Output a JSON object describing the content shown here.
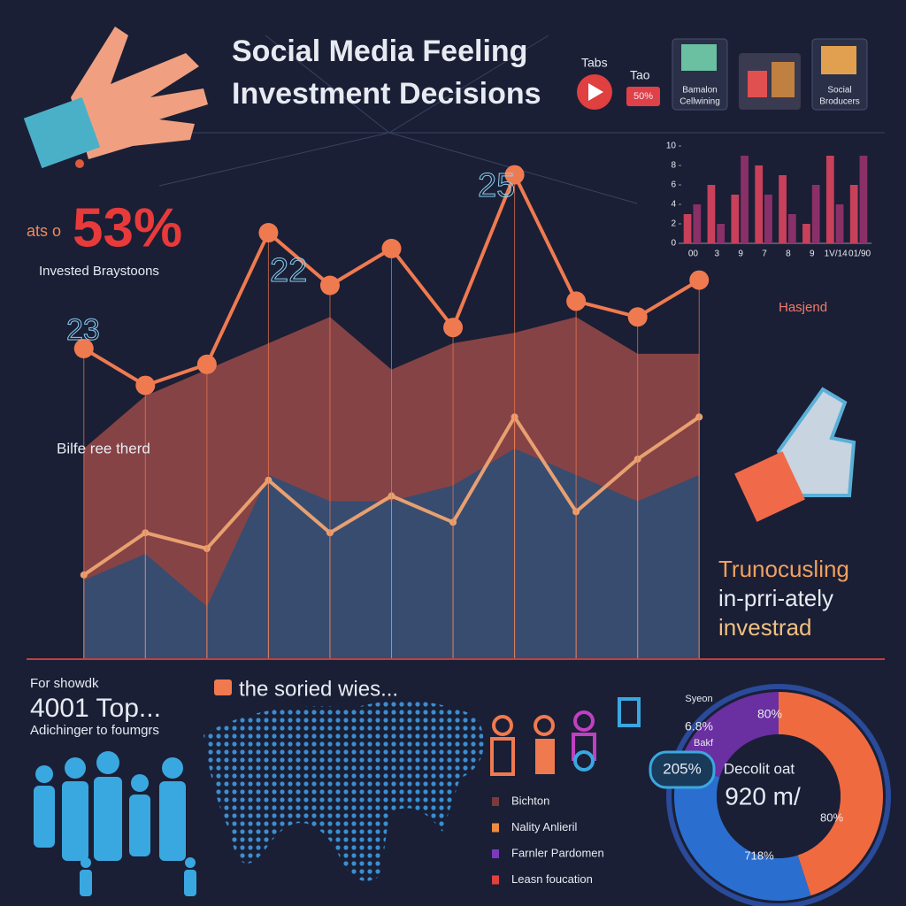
{
  "header": {
    "title_line1": "Social Media Feeling",
    "title_line2": "Investment Decisions"
  },
  "top_icons": {
    "tabs": "Tabs",
    "tao": "Tao",
    "badge": "50%",
    "card1_line1": "Bamalon",
    "card1_line2": "Cellwining",
    "card2_line1": "Social",
    "card2_line2": "Broducers"
  },
  "stat": {
    "prefix": "ats o",
    "value": "53%",
    "caption": "Invested Braystoons"
  },
  "annotations": {
    "trend": "Bilfe ree therd",
    "left_number": "23",
    "mid_number": "22",
    "top_number": "25",
    "right_label": "Hasjend",
    "right_line1": "Trunocusling",
    "right_line2": "in-prri-ately",
    "right_line3": "investrad"
  },
  "bottom_left": {
    "line1": "For showdk",
    "line2": "4001 Top...",
    "line3": "Adichinger to foumgrs"
  },
  "map": {
    "title": "the soried wies..."
  },
  "legend": [
    {
      "label": "Bichton",
      "color": "#7a3a3a"
    },
    {
      "label": "Nality Anlieril",
      "color": "#f08a40"
    },
    {
      "label": "Farnler Pardomen",
      "color": "#7a3ac0"
    },
    {
      "label": "Leasn foucation",
      "color": "#e04040"
    }
  ],
  "donut_labels": {
    "top_small": "Syeon",
    "orange_top": "80%",
    "left_pct": "6.8%",
    "left_small": "Bakf",
    "badge": "205%",
    "center_line1": "Decolit oat",
    "center_line2": "920 m/",
    "orange_bottom": "80%",
    "blue_bottom": "718%"
  },
  "chart_data": [
    {
      "type": "line",
      "categories": [
        null,
        null,
        null,
        null,
        null,
        null,
        null,
        null,
        null,
        null,
        null
      ],
      "ylim": [
        0,
        100
      ],
      "series": [
        {
          "color": "#9a4a48",
          "area": true,
          "values": [
            40,
            50,
            55,
            60,
            65,
            55,
            60,
            62,
            65,
            58,
            58
          ]
        },
        {
          "color": "#2a4e78",
          "area": true,
          "values": [
            15,
            20,
            10,
            35,
            30,
            30,
            33,
            40,
            35,
            30,
            35
          ]
        },
        {
          "color": "#e8a070",
          "values": [
            16,
            24,
            21,
            34,
            24,
            31,
            26,
            46,
            28,
            38,
            46
          ]
        },
        {
          "color": "#f07a50",
          "values": [
            59,
            52,
            56,
            81,
            71,
            78,
            63,
            92,
            68,
            65,
            72
          ]
        }
      ]
    },
    {
      "type": "bar",
      "categories": [
        "00",
        "3",
        "9",
        "7",
        "8",
        "9",
        "1V/14",
        "01/90"
      ],
      "ylim": [
        0,
        10
      ],
      "yticks": [
        0,
        2,
        4,
        6,
        8,
        10
      ],
      "series": [
        {
          "color": "#c8405a",
          "values": [
            3,
            6,
            5,
            8,
            7,
            2,
            9,
            6
          ]
        },
        {
          "color": "#8a3068",
          "values": [
            4,
            2,
            9,
            5,
            3,
            6,
            4,
            9
          ]
        }
      ]
    },
    {
      "type": "pie",
      "values": [
        45,
        35,
        20
      ],
      "colors": [
        "#f06a40",
        "#2a6fd0",
        "#6a2fa0"
      ]
    }
  ]
}
